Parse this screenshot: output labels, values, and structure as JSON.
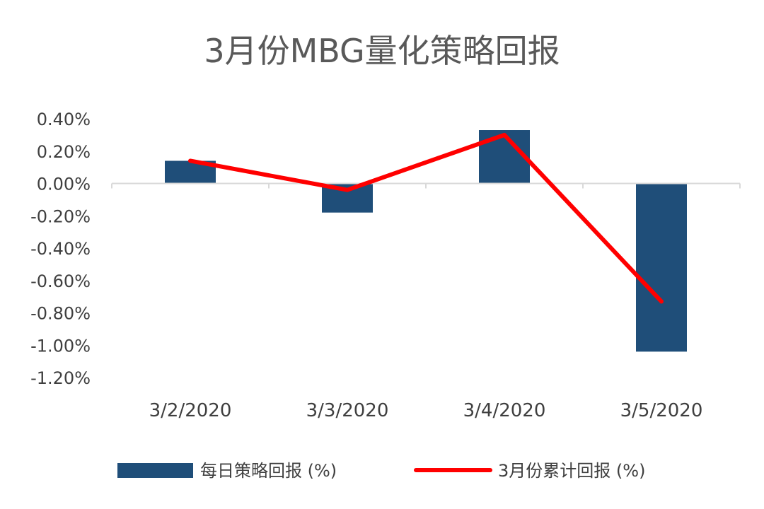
{
  "chart_data": {
    "type": "bar",
    "title": "3月份MBG量化策略回报",
    "categories": [
      "3/2/2020",
      "3/3/2020",
      "3/4/2020",
      "3/5/2020"
    ],
    "series": [
      {
        "name": "每日策略回报 (%)",
        "type": "bar",
        "color": "#1f4e79",
        "values": [
          0.14,
          -0.18,
          0.33,
          -1.04
        ]
      },
      {
        "name": "3月份累计回报 (%)",
        "type": "line",
        "color": "#ff0000",
        "values": [
          0.14,
          -0.04,
          0.3,
          -0.73
        ]
      }
    ],
    "y_ticks": [
      "0.40%",
      "0.20%",
      "0.00%",
      "-0.20%",
      "-0.40%",
      "-0.60%",
      "-0.80%",
      "-1.00%",
      "-1.20%"
    ],
    "ylim": [
      -1.2,
      0.4
    ],
    "grid": false,
    "legend_position": "bottom"
  }
}
